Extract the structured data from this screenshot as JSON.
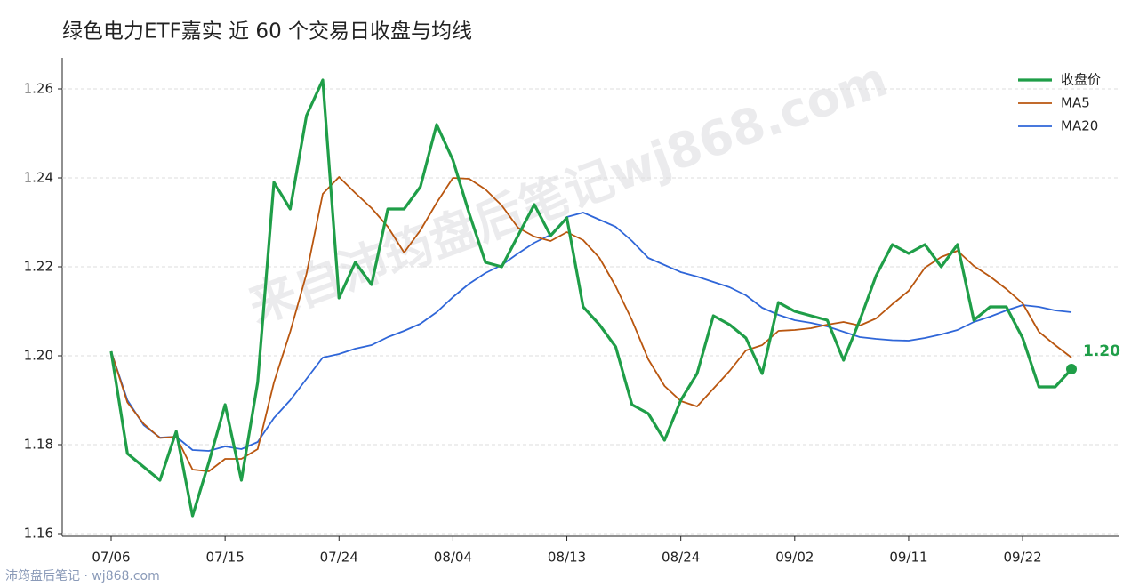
{
  "chart_data": {
    "type": "line",
    "title": "绿色电力ETF嘉实 近 60 个交易日收盘与均线",
    "watermark": "来自沛筠盘后笔记wj868.com",
    "footer": "沛筠盘后笔记 · wj868.com",
    "annotation": "1.20",
    "categories": [
      "07/06",
      null,
      null,
      null,
      null,
      null,
      null,
      "07/15",
      null,
      null,
      null,
      null,
      null,
      null,
      "07/24",
      null,
      null,
      null,
      null,
      null,
      null,
      "08/04",
      null,
      null,
      null,
      null,
      null,
      null,
      "08/13",
      null,
      null,
      null,
      null,
      null,
      null,
      "08/24",
      null,
      null,
      null,
      null,
      null,
      null,
      "09/02",
      null,
      null,
      null,
      null,
      null,
      null,
      "09/11",
      null,
      null,
      null,
      null,
      null,
      null,
      "09/22",
      null,
      null,
      null
    ],
    "series": [
      {
        "name": "收盘价",
        "color": "#1f9e48",
        "values": [
          1.201,
          1.178,
          1.175,
          1.172,
          1.183,
          1.164,
          1.176,
          1.189,
          1.172,
          1.194,
          1.239,
          1.233,
          1.254,
          1.262,
          1.213,
          1.221,
          1.216,
          1.233,
          1.233,
          1.238,
          1.252,
          1.244,
          1.232,
          1.221,
          1.22,
          1.227,
          1.234,
          1.227,
          1.231,
          1.211,
          1.207,
          1.202,
          1.189,
          1.187,
          1.181,
          1.19,
          1.196,
          1.209,
          1.207,
          1.204,
          1.196,
          1.212,
          1.21,
          1.209,
          1.208,
          1.199,
          1.208,
          1.218,
          1.225,
          1.223,
          1.225,
          1.22,
          1.225,
          1.208,
          1.211,
          1.211,
          1.204,
          1.193,
          1.193,
          1.197
        ]
      },
      {
        "name": "MA5",
        "color": "#b9560f",
        "values": [
          1.201,
          1.1895,
          1.1847,
          1.1815,
          1.1818,
          1.1744,
          1.174,
          1.1768,
          1.1768,
          1.179,
          1.194,
          1.2054,
          1.2184,
          1.2364,
          1.2402,
          1.2366,
          1.2332,
          1.229,
          1.2232,
          1.2282,
          1.2344,
          1.24,
          1.2398,
          1.2374,
          1.2338,
          1.2288,
          1.2268,
          1.2258,
          1.2278,
          1.226,
          1.222,
          1.2156,
          1.208,
          1.1992,
          1.1932,
          1.1898,
          1.1886,
          1.1926,
          1.1966,
          1.2012,
          1.2024,
          1.2056,
          1.2058,
          1.2062,
          1.207,
          1.2076,
          1.2068,
          1.2084,
          1.2116,
          1.2146,
          1.2198,
          1.2222,
          1.2236,
          1.2202,
          1.2178,
          1.215,
          1.2118,
          1.2054,
          1.2024,
          1.1996
        ]
      },
      {
        "name": "MA20",
        "color": "#2f66d8",
        "values": [
          1.201,
          1.19,
          1.1844,
          1.1816,
          1.1818,
          1.1788,
          1.1786,
          1.1796,
          1.179,
          1.1806,
          1.186,
          1.19,
          1.1948,
          1.1996,
          1.2004,
          1.2016,
          1.2024,
          1.2042,
          1.2056,
          1.2072,
          1.2098,
          1.2132,
          1.2162,
          1.2186,
          1.2204,
          1.223,
          1.2254,
          1.2272,
          1.2312,
          1.2322,
          1.2306,
          1.229,
          1.2258,
          1.222,
          1.2204,
          1.2188,
          1.2178,
          1.2166,
          1.2154,
          1.2136,
          1.2108,
          1.2092,
          1.208,
          1.2074,
          1.2066,
          1.2054,
          1.2042,
          1.2038,
          1.2035,
          1.2034,
          1.204,
          1.2048,
          1.2058,
          1.2076,
          1.2088,
          1.2102,
          1.2114,
          1.211,
          1.2102,
          1.2098
        ]
      }
    ],
    "ylim": [
      1.1594,
      1.267
    ],
    "yticks": [
      1.16,
      1.18,
      {
        "value": 1.2,
        "label": "1.20"
      },
      1.22,
      1.24,
      1.26
    ],
    "grid": true,
    "legend": "upper right"
  }
}
